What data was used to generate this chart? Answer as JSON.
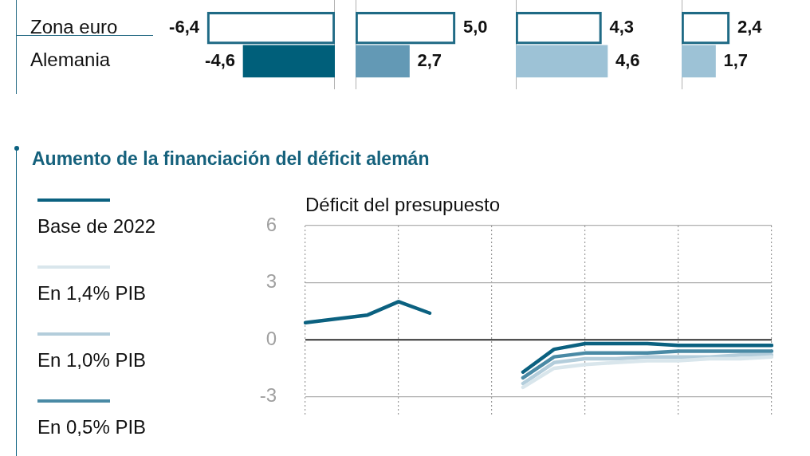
{
  "chart_data": [
    {
      "type": "bar",
      "orientation": "horizontal",
      "categories": [
        "Zona euro",
        "Alemania"
      ],
      "values": [
        -6.4,
        -4.6
      ],
      "colors": [
        "#1f6a85",
        "#005f7a"
      ],
      "value_labels": [
        "-6,4",
        "-4,6"
      ],
      "tick_labels": "y"
    },
    {
      "type": "bar",
      "orientation": "horizontal",
      "categories": [
        null,
        null
      ],
      "values": [
        5.0,
        2.7
      ],
      "colors": [
        "#1f6a85",
        "#6399b5"
      ],
      "value_labels": [
        "5,0",
        "2,7"
      ],
      "tick_labels": false
    },
    {
      "type": "bar",
      "orientation": "horizontal",
      "categories": [
        null,
        null
      ],
      "values": [
        4.3,
        4.6
      ],
      "colors": [
        "#1f6a85",
        "#9dc2d6"
      ],
      "value_labels": [
        "4,3",
        "4,6"
      ],
      "tick_labels": false
    },
    {
      "type": "bar",
      "orientation": "horizontal",
      "categories": [
        null,
        null
      ],
      "values": [
        2.4,
        1.7
      ],
      "colors": [
        "#1f6a85",
        "#9dc2d6"
      ],
      "value_labels": [
        "2,4",
        "1,7"
      ],
      "tick_labels": false
    },
    {
      "type": "line",
      "title": "Aumento de la financiación del déficit alemán",
      "subtitle": "Déficit del presupuesto",
      "categories": [
        null,
        null,
        null,
        null,
        null,
        null,
        null,
        null,
        null,
        null,
        null,
        null,
        null,
        null,
        null,
        null
      ],
      "series": [
        {
          "name": "Base de 2022",
          "color": "#0b6180",
          "values": [
            0.9,
            1.1,
            1.3,
            2.0,
            1.4,
            null,
            null,
            null,
            null,
            null,
            null,
            null,
            null,
            null,
            null,
            null
          ]
        },
        {
          "color": "#0b6180",
          "values": [
            null,
            null,
            null,
            null,
            null,
            null,
            null,
            -1.7,
            -0.5,
            -0.2,
            -0.2,
            -0.2,
            -0.3,
            -0.3,
            -0.3,
            -0.3
          ]
        },
        {
          "name": "En 1,4% PIB",
          "color": "#d9e6ec",
          "values": [
            null,
            null,
            null,
            null,
            null,
            null,
            null,
            -2.5,
            -1.5,
            -1.3,
            -1.2,
            -1.1,
            -1.1,
            -1.0,
            -1.0,
            -0.9
          ]
        },
        {
          "name": "En 1,0% PIB",
          "color": "#b3cddb",
          "values": [
            null,
            null,
            null,
            null,
            null,
            null,
            null,
            -2.3,
            -1.2,
            -1.0,
            -1.0,
            -0.9,
            -0.9,
            -0.9,
            -0.8,
            -0.8
          ]
        },
        {
          "name": "En 0,5% PIB",
          "color": "#4a8aa5",
          "values": [
            null,
            null,
            null,
            null,
            null,
            null,
            null,
            -2.0,
            -0.9,
            -0.7,
            -0.7,
            -0.7,
            -0.6,
            -0.6,
            -0.6,
            -0.6
          ]
        }
      ],
      "ylim": [
        -4,
        6
      ],
      "yticks": [
        -3,
        0,
        3,
        6
      ],
      "grid": true,
      "legend": "left",
      "marker": "none",
      "ref_lines": [
        {
          "axis": "y",
          "value": 0,
          "color": "#000000"
        }
      ]
    }
  ]
}
